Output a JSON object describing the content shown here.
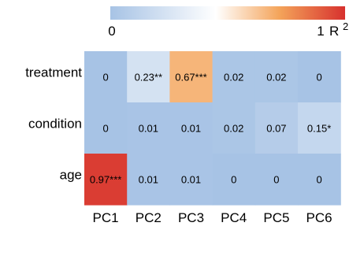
{
  "chart_data": {
    "type": "heatmap",
    "rows": [
      "treatment",
      "condition",
      "age"
    ],
    "columns": [
      "PC1",
      "PC2",
      "PC3",
      "PC4",
      "PC5",
      "PC6"
    ],
    "values": [
      [
        0,
        0.23,
        0.67,
        0.02,
        0.02,
        0
      ],
      [
        0,
        0.01,
        0.01,
        0.02,
        0.07,
        0.15
      ],
      [
        0.97,
        0.01,
        0.01,
        0,
        0,
        0
      ]
    ],
    "cell_labels": [
      [
        "0",
        "0.23**",
        "0.67***",
        "0.02",
        "0.02",
        "0"
      ],
      [
        "0",
        "0.01",
        "0.01",
        "0.02",
        "0.07",
        "0.15*"
      ],
      [
        "0.97***",
        "0.01",
        "0.01",
        "0",
        "0",
        "0"
      ]
    ],
    "colorbar": {
      "min_label": "0",
      "max_label": "1",
      "title_main": "R",
      "title_sup": "2",
      "range": [
        0,
        1
      ],
      "colors": [
        "#a7c3e5",
        "#ffffff",
        "#f4a45a",
        "#d7312e"
      ],
      "legend_position": "top"
    }
  }
}
